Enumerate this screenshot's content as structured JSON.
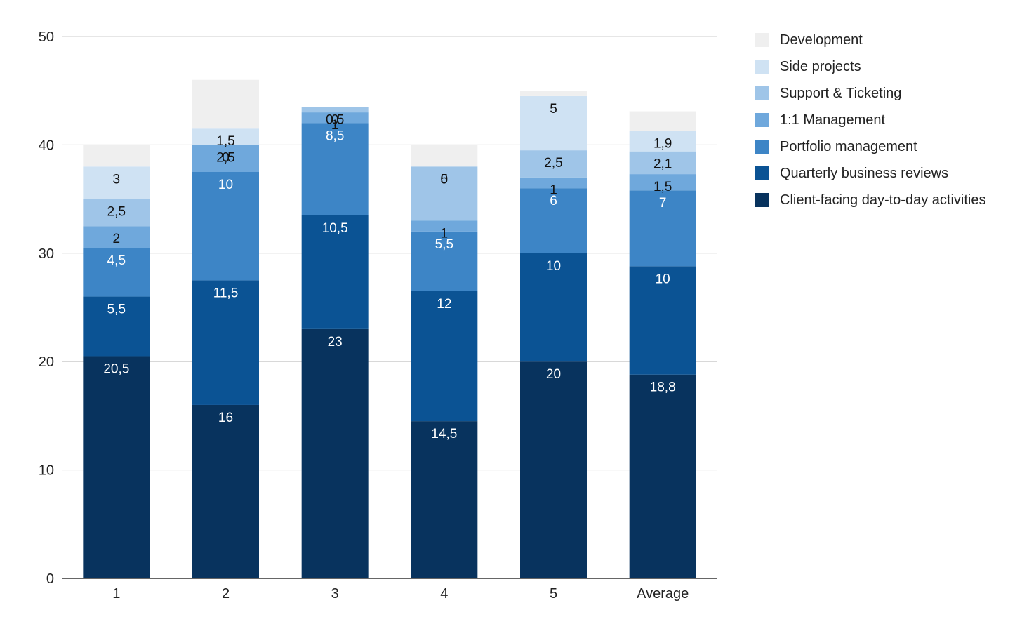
{
  "chart_data": {
    "type": "bar",
    "stacked": true,
    "categories": [
      "1",
      "2",
      "3",
      "4",
      "5",
      "Average"
    ],
    "series": [
      {
        "name": "Client-facing day-to-day activities",
        "color": "#08335e",
        "values": [
          20.5,
          16,
          23,
          14.5,
          20,
          18.8
        ],
        "labels": [
          "20,5",
          "16",
          "23",
          "14,5",
          "20",
          "18,8"
        ],
        "label_color": "#ffffff"
      },
      {
        "name": "Quarterly business reviews",
        "color": "#0b5394",
        "values": [
          5.5,
          11.5,
          10.5,
          12,
          10,
          10
        ],
        "labels": [
          "5,5",
          "11,5",
          "10,5",
          "12",
          "10",
          "10"
        ],
        "label_color": "#ffffff"
      },
      {
        "name": "Portfolio management",
        "color": "#3d85c6",
        "values": [
          4.5,
          10,
          8.5,
          5.5,
          6,
          7
        ],
        "labels": [
          "4,5",
          "10",
          "8,5",
          "5,5",
          "6",
          "7"
        ],
        "label_color": "#ffffff"
      },
      {
        "name": "1:1 Management",
        "color": "#6fa8dc",
        "values": [
          2,
          2.5,
          1,
          1,
          1,
          1.5
        ],
        "labels": [
          "2",
          "2,5",
          "1",
          "1",
          "1",
          "1,5"
        ],
        "label_color": "#111111"
      },
      {
        "name": "Support & Ticketing",
        "color": "#9fc5e8",
        "values": [
          2.5,
          0,
          0.5,
          5,
          2.5,
          2.1
        ],
        "labels": [
          "2,5",
          "0",
          "0,5",
          "5",
          "2,5",
          "2,1"
        ],
        "label_color": "#111111"
      },
      {
        "name": "Side projects",
        "color": "#cfe2f3",
        "values": [
          3,
          1.5,
          0,
          0,
          5,
          1.9
        ],
        "labels": [
          "3",
          "1,5",
          "0",
          "0",
          "5",
          "1,9"
        ],
        "label_color": "#111111"
      },
      {
        "name": "Development",
        "color": "#efefef",
        "values": [
          2,
          4.5,
          0,
          2,
          0.5,
          1.8
        ],
        "labels": [],
        "label_color": "#111111"
      }
    ],
    "ylim": [
      0,
      50
    ],
    "yticks": [
      0,
      10,
      20,
      30,
      40,
      50
    ],
    "grid": true,
    "legend_position": "right"
  }
}
